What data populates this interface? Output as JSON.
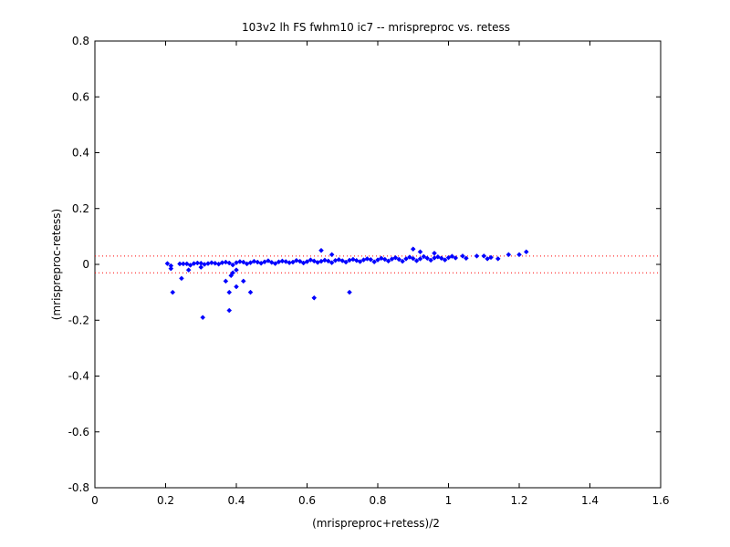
{
  "chart_data": {
    "type": "scatter",
    "title": "103v2 lh FS fwhm10 ic7 -- mrispreproc vs. retess",
    "xlabel": "(mrispreproc+retess)/2",
    "ylabel": "(mrispreproc-retess)",
    "xlim": [
      0,
      1.6
    ],
    "ylim": [
      -0.8,
      0.8
    ],
    "x_ticks": [
      0,
      0.2,
      0.4,
      0.6,
      0.8,
      1,
      1.2,
      1.4,
      1.6
    ],
    "y_ticks": [
      -0.8,
      -0.6,
      -0.4,
      -0.2,
      0,
      0.2,
      0.4,
      0.6,
      0.8
    ],
    "grid": false,
    "marker_color": "#0000ff",
    "reference_lines": [
      {
        "y": 0.03,
        "style": "dotted",
        "color": "#ff0000"
      },
      {
        "y": -0.03,
        "style": "dotted",
        "color": "#ff0000"
      }
    ],
    "series": [
      {
        "marker": "diamond",
        "x": [
          0.205,
          0.215,
          0.22,
          0.215,
          0.245,
          0.25,
          0.265,
          0.3,
          0.305,
          0.37,
          0.38,
          0.38,
          0.385,
          0.39,
          0.4,
          0.4,
          0.42,
          0.44,
          0.62,
          0.72,
          0.64,
          0.67,
          0.9,
          0.92,
          0.96,
          1.04,
          1.1,
          1.12,
          1.14,
          1.17,
          1.2,
          1.22,
          1.11,
          1.08,
          0.24,
          0.26,
          0.28,
          0.3,
          0.32,
          0.34,
          0.36,
          0.38,
          0.4,
          0.42,
          0.44,
          0.46,
          0.48,
          0.5,
          0.52,
          0.54,
          0.56,
          0.58,
          0.6,
          0.62,
          0.64,
          0.66,
          0.68,
          0.7,
          0.72,
          0.74,
          0.76,
          0.78,
          0.8,
          0.82,
          0.84,
          0.86,
          0.88,
          0.9,
          0.92,
          0.94,
          0.96,
          0.98,
          1.0,
          1.02,
          1.05,
          0.27,
          0.31,
          0.35,
          0.39,
          0.43,
          0.47,
          0.51,
          0.55,
          0.59,
          0.63,
          0.67,
          0.71,
          0.75,
          0.79,
          0.83,
          0.87,
          0.91,
          0.95,
          0.99,
          0.29,
          0.33,
          0.37,
          0.41,
          0.45,
          0.49,
          0.53,
          0.57,
          0.61,
          0.65,
          0.69,
          0.73,
          0.77,
          0.81,
          0.85,
          0.89,
          0.93,
          0.97,
          1.01
        ],
        "y": [
          0.003,
          -0.015,
          -0.1,
          -0.005,
          -0.05,
          0.002,
          -0.02,
          -0.01,
          -0.19,
          -0.06,
          -0.165,
          -0.1,
          -0.04,
          -0.03,
          -0.02,
          -0.08,
          -0.06,
          -0.1,
          -0.12,
          -0.1,
          0.05,
          0.035,
          0.055,
          0.045,
          0.04,
          0.03,
          0.03,
          0.025,
          0.02,
          0.035,
          0.035,
          0.045,
          0.02,
          0.03,
          0.002,
          0.002,
          0.003,
          0.004,
          0.003,
          0.004,
          0.006,
          0.005,
          0.006,
          0.008,
          0.006,
          0.008,
          0.009,
          0.007,
          0.009,
          0.01,
          0.008,
          0.011,
          0.01,
          0.012,
          0.011,
          0.012,
          0.014,
          0.013,
          0.015,
          0.014,
          0.016,
          0.017,
          0.016,
          0.018,
          0.019,
          0.018,
          0.02,
          0.021,
          0.02,
          0.022,
          0.023,
          0.022,
          0.024,
          0.023,
          0.022,
          -0.003,
          0.0,
          0.001,
          -0.002,
          0.002,
          0.004,
          0.003,
          0.006,
          0.005,
          0.007,
          0.006,
          0.008,
          0.01,
          0.009,
          0.012,
          0.011,
          0.013,
          0.015,
          0.016,
          0.005,
          0.006,
          0.008,
          0.01,
          0.011,
          0.013,
          0.012,
          0.014,
          0.016,
          0.015,
          0.017,
          0.018,
          0.02,
          0.022,
          0.024,
          0.026,
          0.028,
          0.027,
          0.029
        ]
      }
    ]
  }
}
